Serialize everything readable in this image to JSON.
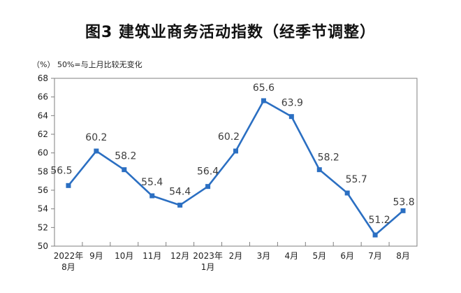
{
  "chart_data": {
    "type": "line",
    "title": "图3  建筑业商务活动指数（经季节调整）",
    "unit_note": "（%） 50%=与上月比较无变化",
    "categories": [
      "2022年\n8月",
      "9月",
      "10月",
      "11月",
      "12月",
      "2023年\n1月",
      "2月",
      "3月",
      "4月",
      "5月",
      "6月",
      "7月",
      "8月"
    ],
    "values": [
      56.5,
      60.2,
      58.2,
      55.4,
      54.4,
      56.4,
      60.2,
      65.6,
      63.9,
      58.2,
      55.7,
      51.2,
      53.8
    ],
    "data_labels": [
      "56.5",
      "60.2",
      "58.2",
      "55.4",
      "54.4",
      "56.4",
      "60.2",
      "65.6",
      "63.9",
      "58.2",
      "55.7",
      "51.2",
      "53.8"
    ],
    "xlabel": "",
    "ylabel": "",
    "ylim": [
      50,
      68
    ],
    "ytick_step": 2,
    "ytick_labels": [
      "50",
      "52",
      "54",
      "56",
      "58",
      "60",
      "62",
      "64",
      "66",
      "68"
    ],
    "grid": false,
    "legend_position": "none",
    "colors": {
      "line": "#2b6fc2",
      "marker": "#2b6fc2",
      "data_label": "#3d3d3d",
      "axis": "#7f7f7f",
      "tick_label": "#1f1f1f"
    }
  }
}
